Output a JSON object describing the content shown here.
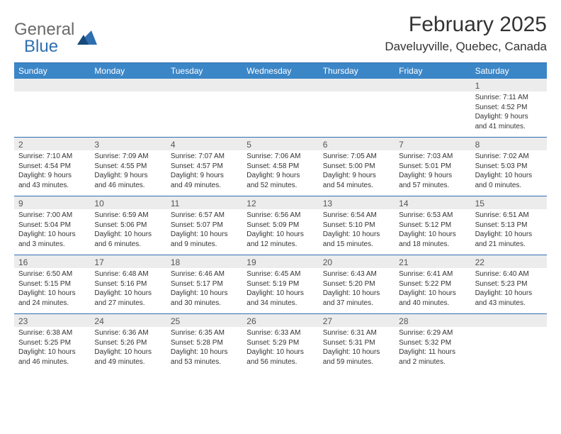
{
  "brand": {
    "general": "General",
    "blue": "Blue"
  },
  "title": "February 2025",
  "location": "Daveluyville, Quebec, Canada",
  "header_bg": "#3b86c7",
  "rule_color": "#2f6fb0",
  "daynum_bg": "#ececec",
  "text_color": "#333333",
  "day_names": [
    "Sunday",
    "Monday",
    "Tuesday",
    "Wednesday",
    "Thursday",
    "Friday",
    "Saturday"
  ],
  "weeks": [
    [
      {
        "n": "",
        "lines": [
          "",
          "",
          "",
          ""
        ]
      },
      {
        "n": "",
        "lines": [
          "",
          "",
          "",
          ""
        ]
      },
      {
        "n": "",
        "lines": [
          "",
          "",
          "",
          ""
        ]
      },
      {
        "n": "",
        "lines": [
          "",
          "",
          "",
          ""
        ]
      },
      {
        "n": "",
        "lines": [
          "",
          "",
          "",
          ""
        ]
      },
      {
        "n": "",
        "lines": [
          "",
          "",
          "",
          ""
        ]
      },
      {
        "n": "1",
        "lines": [
          "Sunrise: 7:11 AM",
          "Sunset: 4:52 PM",
          "Daylight: 9 hours",
          "and 41 minutes."
        ]
      }
    ],
    [
      {
        "n": "2",
        "lines": [
          "Sunrise: 7:10 AM",
          "Sunset: 4:54 PM",
          "Daylight: 9 hours",
          "and 43 minutes."
        ]
      },
      {
        "n": "3",
        "lines": [
          "Sunrise: 7:09 AM",
          "Sunset: 4:55 PM",
          "Daylight: 9 hours",
          "and 46 minutes."
        ]
      },
      {
        "n": "4",
        "lines": [
          "Sunrise: 7:07 AM",
          "Sunset: 4:57 PM",
          "Daylight: 9 hours",
          "and 49 minutes."
        ]
      },
      {
        "n": "5",
        "lines": [
          "Sunrise: 7:06 AM",
          "Sunset: 4:58 PM",
          "Daylight: 9 hours",
          "and 52 minutes."
        ]
      },
      {
        "n": "6",
        "lines": [
          "Sunrise: 7:05 AM",
          "Sunset: 5:00 PM",
          "Daylight: 9 hours",
          "and 54 minutes."
        ]
      },
      {
        "n": "7",
        "lines": [
          "Sunrise: 7:03 AM",
          "Sunset: 5:01 PM",
          "Daylight: 9 hours",
          "and 57 minutes."
        ]
      },
      {
        "n": "8",
        "lines": [
          "Sunrise: 7:02 AM",
          "Sunset: 5:03 PM",
          "Daylight: 10 hours",
          "and 0 minutes."
        ]
      }
    ],
    [
      {
        "n": "9",
        "lines": [
          "Sunrise: 7:00 AM",
          "Sunset: 5:04 PM",
          "Daylight: 10 hours",
          "and 3 minutes."
        ]
      },
      {
        "n": "10",
        "lines": [
          "Sunrise: 6:59 AM",
          "Sunset: 5:06 PM",
          "Daylight: 10 hours",
          "and 6 minutes."
        ]
      },
      {
        "n": "11",
        "lines": [
          "Sunrise: 6:57 AM",
          "Sunset: 5:07 PM",
          "Daylight: 10 hours",
          "and 9 minutes."
        ]
      },
      {
        "n": "12",
        "lines": [
          "Sunrise: 6:56 AM",
          "Sunset: 5:09 PM",
          "Daylight: 10 hours",
          "and 12 minutes."
        ]
      },
      {
        "n": "13",
        "lines": [
          "Sunrise: 6:54 AM",
          "Sunset: 5:10 PM",
          "Daylight: 10 hours",
          "and 15 minutes."
        ]
      },
      {
        "n": "14",
        "lines": [
          "Sunrise: 6:53 AM",
          "Sunset: 5:12 PM",
          "Daylight: 10 hours",
          "and 18 minutes."
        ]
      },
      {
        "n": "15",
        "lines": [
          "Sunrise: 6:51 AM",
          "Sunset: 5:13 PM",
          "Daylight: 10 hours",
          "and 21 minutes."
        ]
      }
    ],
    [
      {
        "n": "16",
        "lines": [
          "Sunrise: 6:50 AM",
          "Sunset: 5:15 PM",
          "Daylight: 10 hours",
          "and 24 minutes."
        ]
      },
      {
        "n": "17",
        "lines": [
          "Sunrise: 6:48 AM",
          "Sunset: 5:16 PM",
          "Daylight: 10 hours",
          "and 27 minutes."
        ]
      },
      {
        "n": "18",
        "lines": [
          "Sunrise: 6:46 AM",
          "Sunset: 5:17 PM",
          "Daylight: 10 hours",
          "and 30 minutes."
        ]
      },
      {
        "n": "19",
        "lines": [
          "Sunrise: 6:45 AM",
          "Sunset: 5:19 PM",
          "Daylight: 10 hours",
          "and 34 minutes."
        ]
      },
      {
        "n": "20",
        "lines": [
          "Sunrise: 6:43 AM",
          "Sunset: 5:20 PM",
          "Daylight: 10 hours",
          "and 37 minutes."
        ]
      },
      {
        "n": "21",
        "lines": [
          "Sunrise: 6:41 AM",
          "Sunset: 5:22 PM",
          "Daylight: 10 hours",
          "and 40 minutes."
        ]
      },
      {
        "n": "22",
        "lines": [
          "Sunrise: 6:40 AM",
          "Sunset: 5:23 PM",
          "Daylight: 10 hours",
          "and 43 minutes."
        ]
      }
    ],
    [
      {
        "n": "23",
        "lines": [
          "Sunrise: 6:38 AM",
          "Sunset: 5:25 PM",
          "Daylight: 10 hours",
          "and 46 minutes."
        ]
      },
      {
        "n": "24",
        "lines": [
          "Sunrise: 6:36 AM",
          "Sunset: 5:26 PM",
          "Daylight: 10 hours",
          "and 49 minutes."
        ]
      },
      {
        "n": "25",
        "lines": [
          "Sunrise: 6:35 AM",
          "Sunset: 5:28 PM",
          "Daylight: 10 hours",
          "and 53 minutes."
        ]
      },
      {
        "n": "26",
        "lines": [
          "Sunrise: 6:33 AM",
          "Sunset: 5:29 PM",
          "Daylight: 10 hours",
          "and 56 minutes."
        ]
      },
      {
        "n": "27",
        "lines": [
          "Sunrise: 6:31 AM",
          "Sunset: 5:31 PM",
          "Daylight: 10 hours",
          "and 59 minutes."
        ]
      },
      {
        "n": "28",
        "lines": [
          "Sunrise: 6:29 AM",
          "Sunset: 5:32 PM",
          "Daylight: 11 hours",
          "and 2 minutes."
        ]
      },
      {
        "n": "",
        "lines": [
          "",
          "",
          "",
          ""
        ]
      }
    ]
  ]
}
